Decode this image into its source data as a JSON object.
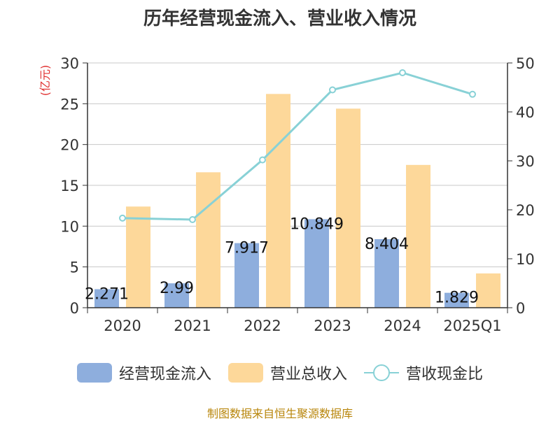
{
  "chart_data": {
    "type": "bar",
    "title": "历年经营现金流入、营业收入情况",
    "ylabel": "(亿元)",
    "y2label": "%",
    "categories": [
      "2020",
      "2021",
      "2022",
      "2023",
      "2024",
      "2025Q1"
    ],
    "ylim": [
      0,
      30
    ],
    "y2lim": [
      0,
      50
    ],
    "yticks": [
      "0",
      "5",
      "10",
      "15",
      "20",
      "25",
      "30"
    ],
    "y2ticks": [
      "0",
      "10",
      "20",
      "30",
      "40",
      "50"
    ],
    "series": [
      {
        "name": "经营现金流入",
        "type": "bar",
        "color": "#8eaedd",
        "values": [
          2.271,
          2.99,
          7.917,
          10.849,
          8.404,
          1.829
        ],
        "labels": [
          "2.271",
          "2.99",
          "7.917",
          "10.849",
          "8.404",
          "1.829"
        ]
      },
      {
        "name": "营业总收入",
        "type": "bar",
        "color": "#fdd89a",
        "values": [
          12.4,
          16.6,
          26.2,
          24.4,
          17.5,
          4.2
        ]
      },
      {
        "name": "营收现金比",
        "type": "line",
        "axis": "right",
        "color": "#88d1d6",
        "values": [
          18.3,
          18.0,
          30.2,
          44.5,
          48.0,
          43.6
        ]
      }
    ],
    "grid": true,
    "legend": "bottom"
  },
  "source": "制图数据来自恒生聚源数据库"
}
